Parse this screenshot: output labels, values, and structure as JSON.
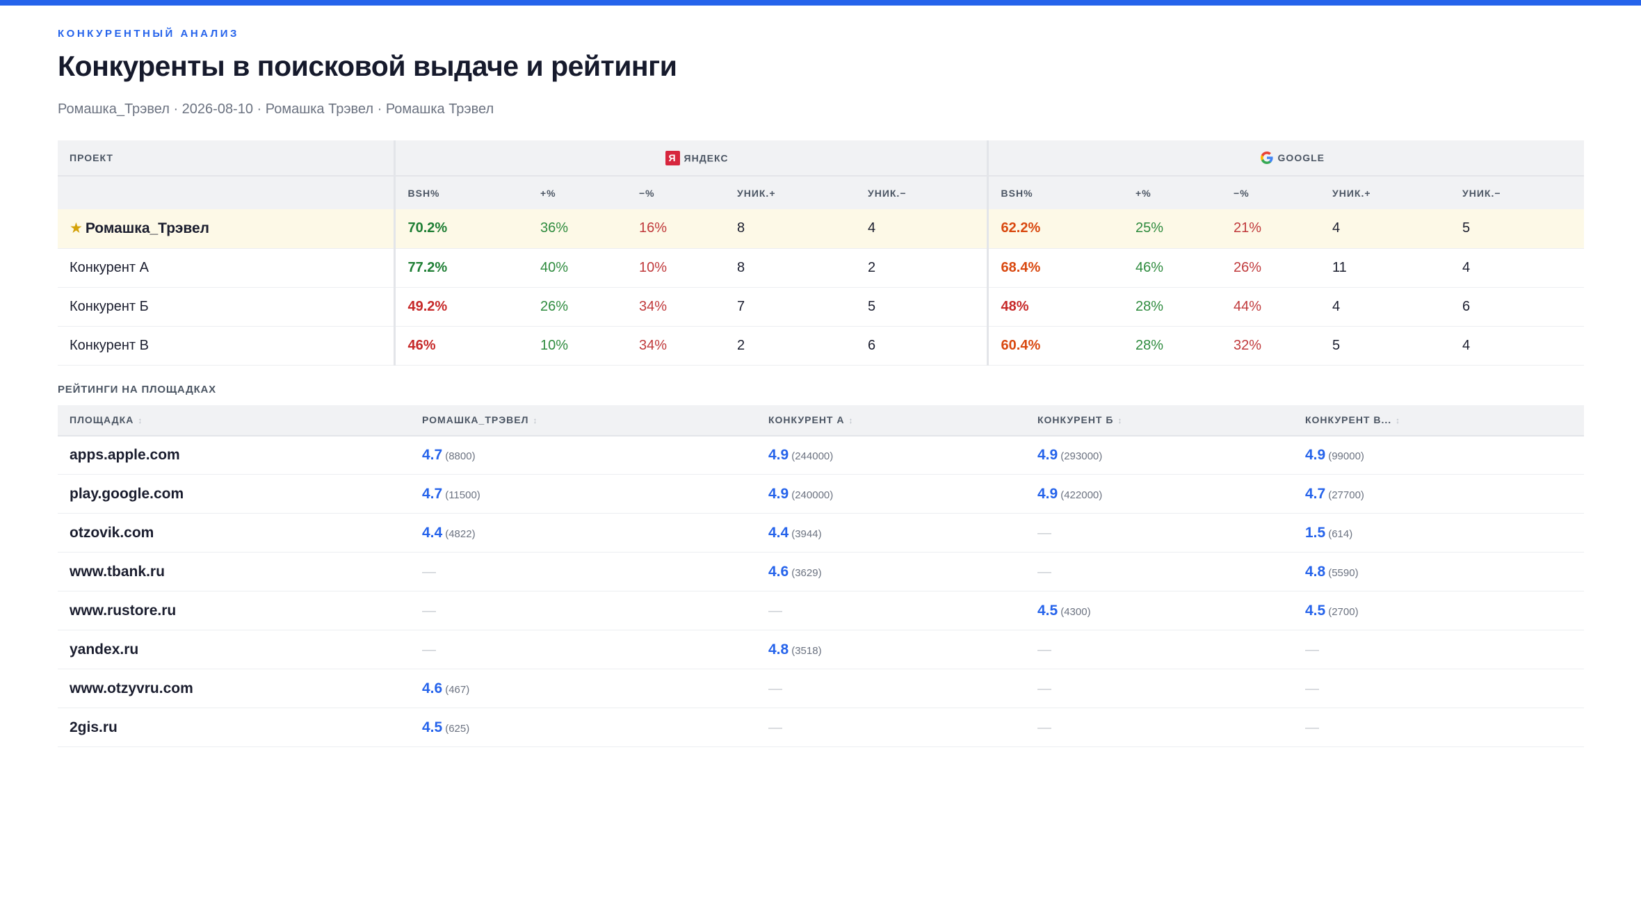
{
  "header": {
    "eyebrow": "КОНКУРЕНТНЫЙ АНАЛИЗ",
    "title": "Конкуренты в поисковой выдаче и рейтинги",
    "subtitle": "Ромашка_Трэвел · 2026-08-10 · Ромашка Трэвел · Ромашка Трэвел"
  },
  "serp": {
    "project_header": "ПРОЕКТ",
    "yandex": {
      "label": "ЯНДЕКС",
      "badge": "Я",
      "color": "#d7263d"
    },
    "google": {
      "label": "GOOGLE"
    },
    "columns": [
      "BSH%",
      "+%",
      "−%",
      "УНИК.+",
      "УНИК.−"
    ],
    "rows": [
      {
        "name": "Ромашка_Трэвел",
        "own": true,
        "star": "★",
        "yandex": {
          "bsh": "70.2%",
          "bsh_level": "good",
          "plus": "36%",
          "minus": "16%",
          "uniq_plus": "8",
          "uniq_minus": "4"
        },
        "google": {
          "bsh": "62.2%",
          "bsh_level": "warn",
          "plus": "25%",
          "minus": "21%",
          "uniq_plus": "4",
          "uniq_minus": "5"
        }
      },
      {
        "name": "Конкурент А",
        "own": false,
        "yandex": {
          "bsh": "77.2%",
          "bsh_level": "good",
          "plus": "40%",
          "minus": "10%",
          "uniq_plus": "8",
          "uniq_minus": "2"
        },
        "google": {
          "bsh": "68.4%",
          "bsh_level": "warn",
          "plus": "46%",
          "minus": "26%",
          "uniq_plus": "11",
          "uniq_minus": "4"
        }
      },
      {
        "name": "Конкурент Б",
        "own": false,
        "yandex": {
          "bsh": "49.2%",
          "bsh_level": "bad",
          "plus": "26%",
          "minus": "34%",
          "uniq_plus": "7",
          "uniq_minus": "5"
        },
        "google": {
          "bsh": "48%",
          "bsh_level": "bad",
          "plus": "28%",
          "minus": "44%",
          "uniq_plus": "4",
          "uniq_minus": "6"
        }
      },
      {
        "name": "Конкурент В",
        "own": false,
        "yandex": {
          "bsh": "46%",
          "bsh_level": "bad",
          "plus": "10%",
          "minus": "34%",
          "uniq_plus": "2",
          "uniq_minus": "6"
        },
        "google": {
          "bsh": "60.4%",
          "bsh_level": "warn",
          "plus": "28%",
          "minus": "32%",
          "uniq_plus": "5",
          "uniq_minus": "4"
        }
      }
    ]
  },
  "ratings": {
    "section_title": "РЕЙТИНГИ НА ПЛОЩАДКАХ",
    "columns": [
      "ПЛОЩАДКА",
      "РОМАШКА_ТРЭВЕЛ",
      "КОНКУРЕНТ А",
      "КОНКУРЕНТ Б",
      "КОНКУРЕНТ В..."
    ],
    "sort_icon": "↕",
    "empty": "—",
    "rows": [
      {
        "platform": "apps.apple.com",
        "values": [
          {
            "rating": "4.7",
            "count": "(8800)"
          },
          {
            "rating": "4.9",
            "count": "(244000)"
          },
          {
            "rating": "4.9",
            "count": "(293000)"
          },
          {
            "rating": "4.9",
            "count": "(99000)"
          }
        ]
      },
      {
        "platform": "play.google.com",
        "values": [
          {
            "rating": "4.7",
            "count": "(11500)"
          },
          {
            "rating": "4.9",
            "count": "(240000)"
          },
          {
            "rating": "4.9",
            "count": "(422000)"
          },
          {
            "rating": "4.7",
            "count": "(27700)"
          }
        ]
      },
      {
        "platform": "otzovik.com",
        "values": [
          {
            "rating": "4.4",
            "count": "(4822)"
          },
          {
            "rating": "4.4",
            "count": "(3944)"
          },
          null,
          {
            "rating": "1.5",
            "count": "(614)"
          }
        ]
      },
      {
        "platform": "www.tbank.ru",
        "values": [
          null,
          {
            "rating": "4.6",
            "count": "(3629)"
          },
          null,
          {
            "rating": "4.8",
            "count": "(5590)"
          }
        ]
      },
      {
        "platform": "www.rustore.ru",
        "values": [
          null,
          null,
          {
            "rating": "4.5",
            "count": "(4300)"
          },
          {
            "rating": "4.5",
            "count": "(2700)"
          }
        ]
      },
      {
        "platform": "yandex.ru",
        "values": [
          null,
          {
            "rating": "4.8",
            "count": "(3518)"
          },
          null,
          null
        ]
      },
      {
        "platform": "www.otzyvru.com",
        "values": [
          {
            "rating": "4.6",
            "count": "(467)"
          },
          null,
          null,
          null
        ]
      },
      {
        "platform": "2gis.ru",
        "values": [
          {
            "rating": "4.5",
            "count": "(625)"
          },
          null,
          null,
          null
        ]
      }
    ]
  }
}
